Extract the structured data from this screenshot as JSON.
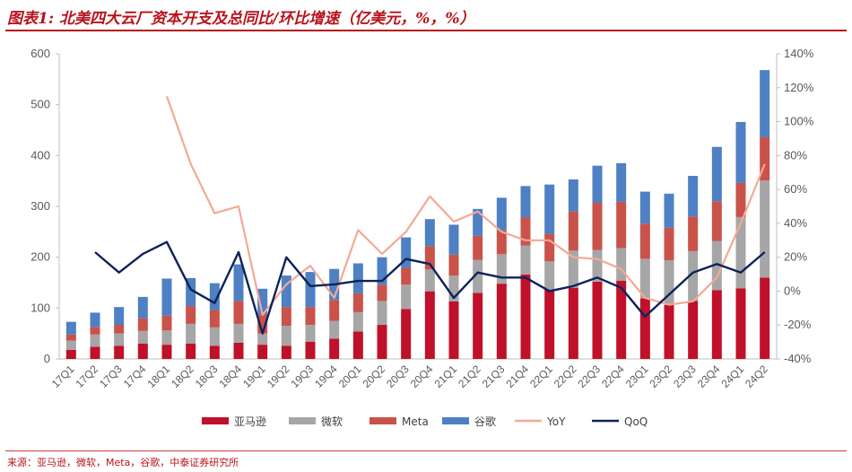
{
  "figure": {
    "number": "图表1:",
    "title": "北美四大云厂资本开支及总同比/环比增速（亿美元，%，%）"
  },
  "source": "来源：亚马逊，微软，Meta，谷歌，中泰证券研究所",
  "colors": {
    "amazon": "#c0102a",
    "microsoft": "#a6a6a6",
    "meta": "#c9524a",
    "google": "#4e80c3",
    "yoy": "#f4a896",
    "qoq": "#0e2259",
    "title": "#b8121b"
  },
  "chart_data": {
    "type": "bar",
    "stacked": true,
    "categories": [
      "17Q1",
      "17Q2",
      "17Q3",
      "17Q4",
      "18Q1",
      "18Q2",
      "18Q3",
      "18Q4",
      "19Q1",
      "19Q2",
      "19Q3",
      "19Q4",
      "20Q1",
      "20Q2",
      "20Q3",
      "20Q4",
      "21Q1",
      "21Q2",
      "21Q3",
      "21Q4",
      "22Q1",
      "22Q2",
      "22Q3",
      "22Q4",
      "23Q1",
      "23Q2",
      "23Q3",
      "23Q4",
      "24Q1",
      "24Q2"
    ],
    "left_axis": {
      "ylim": [
        0,
        600
      ],
      "ticks": [
        0,
        100,
        200,
        300,
        400,
        500,
        600
      ]
    },
    "right_axis": {
      "ylim": [
        -40,
        140
      ],
      "unit": "%",
      "ticks": [
        -40,
        -20,
        0,
        20,
        40,
        60,
        80,
        100,
        120,
        140
      ]
    },
    "series": [
      {
        "name": "亚马逊",
        "kind": "bar",
        "axis": "left",
        "values": [
          18,
          24,
          26,
          30,
          28,
          30,
          26,
          32,
          28,
          26,
          34,
          40,
          54,
          67,
          98,
          133,
          113,
          130,
          148,
          166,
          136,
          140,
          152,
          154,
          119,
          106,
          114,
          135,
          139,
          160
        ]
      },
      {
        "name": "微软",
        "kind": "bar",
        "axis": "left",
        "values": [
          18,
          24,
          24,
          25,
          28,
          39,
          36,
          37,
          22,
          39,
          33,
          35,
          38,
          47,
          48,
          43,
          51,
          65,
          58,
          57,
          56,
          73,
          62,
          64,
          78,
          88,
          98,
          97,
          140,
          191
        ]
      },
      {
        "name": "Meta",
        "kind": "bar",
        "axis": "left",
        "values": [
          12,
          15,
          17,
          25,
          29,
          35,
          34,
          45,
          38,
          37,
          35,
          41,
          37,
          32,
          33,
          46,
          41,
          47,
          47,
          55,
          54,
          77,
          93,
          91,
          69,
          64,
          68,
          78,
          67,
          85
        ]
      },
      {
        "name": "谷歌",
        "kind": "bar",
        "axis": "left",
        "values": [
          25,
          28,
          35,
          42,
          73,
          55,
          53,
          72,
          50,
          62,
          69,
          61,
          59,
          54,
          60,
          53,
          59,
          53,
          64,
          62,
          97,
          63,
          73,
          76,
          63,
          67,
          80,
          107,
          120,
          132
        ]
      },
      {
        "name": "YoY",
        "kind": "line",
        "axis": "right",
        "values": [
          null,
          null,
          null,
          null,
          115,
          75,
          46,
          50,
          -14,
          4,
          15,
          -4,
          36,
          22,
          35,
          56,
          41,
          47,
          35,
          30,
          30,
          20,
          19,
          13,
          -4,
          -8,
          -6,
          8,
          40,
          75
        ]
      },
      {
        "name": "QoQ",
        "kind": "line",
        "axis": "right",
        "values": [
          null,
          23,
          11,
          22,
          29,
          1,
          -7,
          23,
          -25,
          20,
          3,
          4,
          6,
          6,
          19,
          16,
          -4,
          11,
          8,
          8,
          0,
          3,
          8,
          2,
          -15,
          -2,
          11,
          16,
          11,
          23
        ]
      }
    ]
  }
}
